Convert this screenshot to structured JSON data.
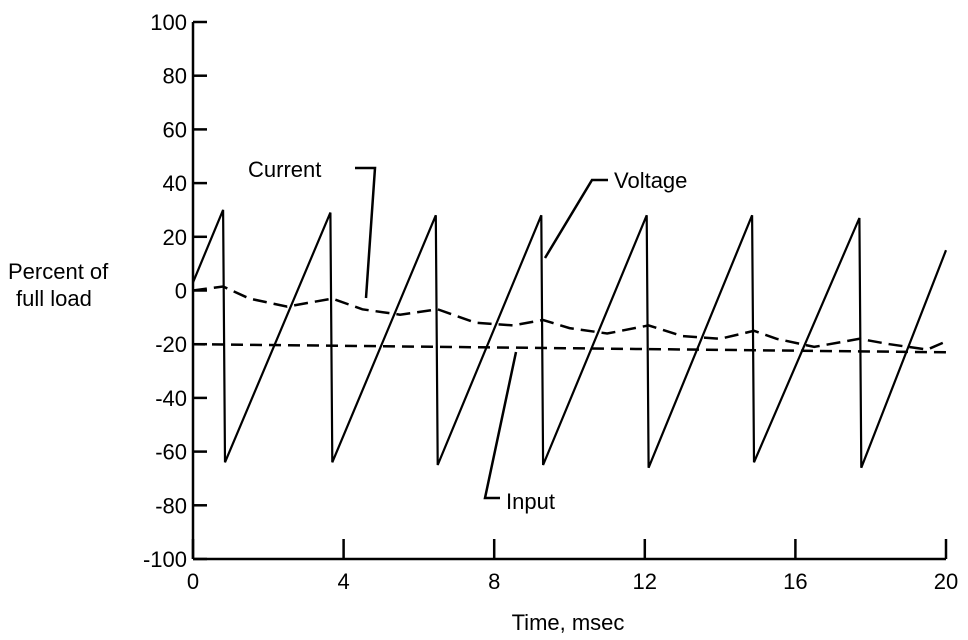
{
  "chart_data": {
    "type": "line",
    "xlabel": "Time, msec",
    "ylabel_lines": [
      "Percent of",
      "full load"
    ],
    "xlim": [
      0,
      20
    ],
    "ylim": [
      -100,
      100
    ],
    "x_ticks": [
      0,
      4,
      8,
      12,
      16,
      20
    ],
    "y_ticks": [
      100,
      80,
      60,
      40,
      20,
      0,
      -20,
      -40,
      -60,
      -80,
      -100
    ],
    "y_tick_labels": [
      "100",
      "80",
      "60",
      "40",
      "20",
      "0",
      "-20",
      "-40",
      "-60",
      "-80",
      "-100"
    ],
    "x_tick_labels": [
      "0",
      "4",
      "8",
      "12",
      "16",
      "20"
    ],
    "grid": false,
    "series": [
      {
        "name": "Voltage",
        "style": "solid",
        "x": [
          0,
          0.8,
          0.85,
          3.65,
          3.7,
          6.45,
          6.5,
          9.25,
          9.3,
          12.05,
          12.1,
          14.85,
          14.9,
          17.7,
          17.75,
          20
        ],
        "y": [
          3,
          30,
          -64,
          29,
          -64,
          28,
          -65,
          28,
          -65,
          28,
          -66,
          28,
          -64,
          27,
          -66,
          15
        ]
      },
      {
        "name": "Current",
        "style": "dashed",
        "x": [
          0,
          0.8,
          1.5,
          2.5,
          3.7,
          4.5,
          5.5,
          6.5,
          7.5,
          8.5,
          9.3,
          10,
          11,
          12.1,
          13,
          14,
          14.9,
          15.5,
          16.5,
          17.7,
          18.5,
          19.5,
          20
        ],
        "y": [
          0,
          1.5,
          -3,
          -6,
          -3,
          -7,
          -9,
          -7,
          -12,
          -13,
          -11,
          -14,
          -16,
          -13,
          -17,
          -18,
          -15,
          -18,
          -21,
          -18,
          -20,
          -22,
          -19
        ]
      },
      {
        "name": "Input",
        "style": "dashed",
        "x": [
          0,
          20
        ],
        "y": [
          -20,
          -23
        ]
      }
    ],
    "annotations": [
      {
        "text": "Current",
        "series": "Current"
      },
      {
        "text": "Voltage",
        "series": "Voltage"
      },
      {
        "text": "Input",
        "series": "Input"
      }
    ]
  }
}
